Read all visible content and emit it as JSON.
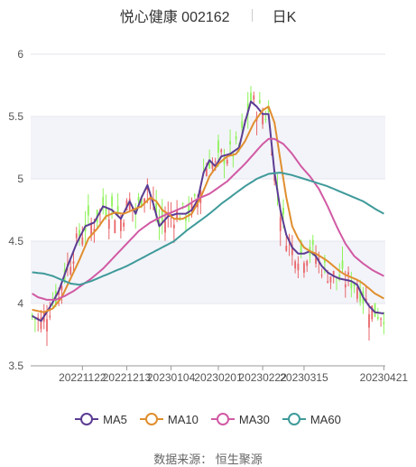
{
  "header": {
    "stock": "悦心健康 002162",
    "period": "日K"
  },
  "source_text": "数据来源：  恒生聚源",
  "chart_data": {
    "type": "candlestick",
    "title": "悦心健康 002162",
    "period": "日K",
    "y_ticks": [
      "6",
      "5.5",
      "5",
      "4.5",
      "4",
      "3.5"
    ],
    "ylim": [
      3.5,
      6.0
    ],
    "x_tick_labels": [
      "20221122",
      "20221213",
      "20230104",
      "20230201",
      "20230222",
      "20230315",
      "20230421"
    ],
    "x_tick_index": [
      17,
      32,
      47,
      63,
      78,
      92,
      119
    ],
    "n_days": 120,
    "legend": [
      "MA5",
      "MA10",
      "MA30",
      "MA60"
    ],
    "colors": {
      "up": "#e8666a",
      "down": "#8ef35a",
      "MA5": "#5b3c93",
      "MA10": "#e08e2f",
      "MA30": "#d15aa4",
      "MA60": "#3f9a9a"
    },
    "series": [
      {
        "name": "MA5",
        "anchors": [
          [
            0,
            3.9
          ],
          [
            3,
            3.86
          ],
          [
            6,
            3.97
          ],
          [
            9,
            4.1
          ],
          [
            12,
            4.3
          ],
          [
            15,
            4.48
          ],
          [
            18,
            4.62
          ],
          [
            21,
            4.65
          ],
          [
            24,
            4.78
          ],
          [
            27,
            4.75
          ],
          [
            30,
            4.68
          ],
          [
            33,
            4.82
          ],
          [
            35,
            4.72
          ],
          [
            37,
            4.85
          ],
          [
            39,
            4.95
          ],
          [
            41,
            4.8
          ],
          [
            43,
            4.62
          ],
          [
            46,
            4.7
          ],
          [
            49,
            4.72
          ],
          [
            52,
            4.72
          ],
          [
            54,
            4.75
          ],
          [
            56,
            4.83
          ],
          [
            58,
            5.05
          ],
          [
            60,
            5.15
          ],
          [
            62,
            5.1
          ],
          [
            64,
            5.18
          ],
          [
            67,
            5.2
          ],
          [
            70,
            5.25
          ],
          [
            72,
            5.45
          ],
          [
            74,
            5.62
          ],
          [
            76,
            5.58
          ],
          [
            78,
            5.52
          ],
          [
            80,
            5.52
          ],
          [
            82,
            5.05
          ],
          [
            84,
            4.75
          ],
          [
            86,
            4.55
          ],
          [
            88,
            4.45
          ],
          [
            90,
            4.4
          ],
          [
            92,
            4.4
          ],
          [
            94,
            4.42
          ],
          [
            96,
            4.38
          ],
          [
            98,
            4.3
          ],
          [
            100,
            4.25
          ],
          [
            102,
            4.22
          ],
          [
            104,
            4.2
          ],
          [
            106,
            4.19
          ],
          [
            108,
            4.18
          ],
          [
            110,
            4.15
          ],
          [
            112,
            4.05
          ],
          [
            114,
            3.98
          ],
          [
            116,
            3.93
          ],
          [
            119,
            3.92
          ]
        ]
      },
      {
        "name": "MA10",
        "anchors": [
          [
            0,
            3.95
          ],
          [
            4,
            3.93
          ],
          [
            7,
            3.96
          ],
          [
            10,
            4.05
          ],
          [
            13,
            4.2
          ],
          [
            16,
            4.35
          ],
          [
            19,
            4.52
          ],
          [
            22,
            4.6
          ],
          [
            25,
            4.7
          ],
          [
            28,
            4.73
          ],
          [
            31,
            4.72
          ],
          [
            34,
            4.75
          ],
          [
            37,
            4.78
          ],
          [
            40,
            4.85
          ],
          [
            42,
            4.82
          ],
          [
            44,
            4.75
          ],
          [
            46,
            4.72
          ],
          [
            48,
            4.68
          ],
          [
            51,
            4.68
          ],
          [
            54,
            4.72
          ],
          [
            57,
            4.85
          ],
          [
            60,
            5.02
          ],
          [
            63,
            5.12
          ],
          [
            66,
            5.18
          ],
          [
            69,
            5.2
          ],
          [
            72,
            5.3
          ],
          [
            75,
            5.45
          ],
          [
            78,
            5.55
          ],
          [
            80,
            5.58
          ],
          [
            82,
            5.45
          ],
          [
            84,
            5.15
          ],
          [
            86,
            4.85
          ],
          [
            88,
            4.62
          ],
          [
            90,
            4.52
          ],
          [
            92,
            4.45
          ],
          [
            94,
            4.42
          ],
          [
            96,
            4.4
          ],
          [
            98,
            4.37
          ],
          [
            100,
            4.34
          ],
          [
            102,
            4.3
          ],
          [
            104,
            4.26
          ],
          [
            106,
            4.23
          ],
          [
            108,
            4.21
          ],
          [
            110,
            4.19
          ],
          [
            112,
            4.16
          ],
          [
            114,
            4.12
          ],
          [
            116,
            4.08
          ],
          [
            119,
            4.04
          ]
        ]
      },
      {
        "name": "MA30",
        "anchors": [
          [
            0,
            4.08
          ],
          [
            2,
            4.05
          ],
          [
            5,
            4.03
          ],
          [
            8,
            4.03
          ],
          [
            11,
            4.06
          ],
          [
            14,
            4.1
          ],
          [
            17,
            4.15
          ],
          [
            20,
            4.2
          ],
          [
            24,
            4.28
          ],
          [
            28,
            4.38
          ],
          [
            32,
            4.48
          ],
          [
            36,
            4.58
          ],
          [
            40,
            4.65
          ],
          [
            44,
            4.7
          ],
          [
            48,
            4.74
          ],
          [
            52,
            4.78
          ],
          [
            56,
            4.84
          ],
          [
            60,
            4.88
          ],
          [
            63,
            4.93
          ],
          [
            66,
            4.98
          ],
          [
            69,
            5.05
          ],
          [
            72,
            5.12
          ],
          [
            75,
            5.2
          ],
          [
            78,
            5.28
          ],
          [
            80,
            5.32
          ],
          [
            82,
            5.32
          ],
          [
            85,
            5.28
          ],
          [
            88,
            5.2
          ],
          [
            91,
            5.1
          ],
          [
            94,
            5.02
          ],
          [
            97,
            4.92
          ],
          [
            100,
            4.78
          ],
          [
            103,
            4.62
          ],
          [
            106,
            4.48
          ],
          [
            109,
            4.38
          ],
          [
            112,
            4.32
          ],
          [
            115,
            4.27
          ],
          [
            119,
            4.22
          ]
        ]
      },
      {
        "name": "MA60",
        "anchors": [
          [
            0,
            4.25
          ],
          [
            4,
            4.24
          ],
          [
            7,
            4.22
          ],
          [
            10,
            4.19
          ],
          [
            13,
            4.16
          ],
          [
            16,
            4.15
          ],
          [
            20,
            4.18
          ],
          [
            24,
            4.22
          ],
          [
            28,
            4.26
          ],
          [
            32,
            4.3
          ],
          [
            36,
            4.35
          ],
          [
            40,
            4.4
          ],
          [
            44,
            4.45
          ],
          [
            48,
            4.5
          ],
          [
            52,
            4.58
          ],
          [
            56,
            4.65
          ],
          [
            60,
            4.72
          ],
          [
            64,
            4.8
          ],
          [
            68,
            4.87
          ],
          [
            72,
            4.94
          ],
          [
            76,
            5.0
          ],
          [
            80,
            5.04
          ],
          [
            84,
            5.05
          ],
          [
            88,
            5.03
          ],
          [
            92,
            5.0
          ],
          [
            96,
            4.97
          ],
          [
            100,
            4.94
          ],
          [
            104,
            4.9
          ],
          [
            108,
            4.86
          ],
          [
            112,
            4.82
          ],
          [
            116,
            4.76
          ],
          [
            119,
            4.72
          ]
        ]
      }
    ]
  }
}
